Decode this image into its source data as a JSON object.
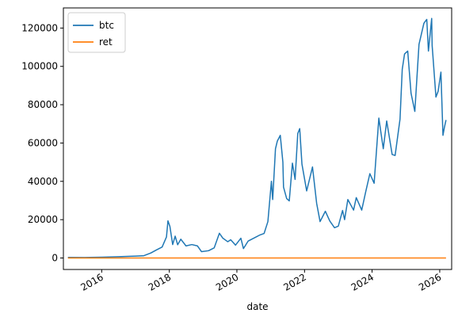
{
  "chart_data": {
    "type": "line",
    "xlabel": "date",
    "ylabel": "",
    "title": "",
    "x_tick_labels": [
      "2016",
      "2018",
      "2020",
      "2022",
      "2024",
      "2026"
    ],
    "x_ticks": [
      "2016-01-01",
      "2018-01-01",
      "2020-01-01",
      "2022-01-01",
      "2024-01-01",
      "2026-01-01"
    ],
    "y_tick_labels": [
      "0",
      "20000",
      "40000",
      "60000",
      "80000",
      "100000",
      "120000"
    ],
    "y_ticks": [
      0,
      20000,
      40000,
      60000,
      80000,
      100000,
      120000
    ],
    "xlim": [
      "2014-11-13",
      "2026-05-10"
    ],
    "ylim": [
      -6000,
      130500
    ],
    "grid": false,
    "legend_position": "top-left",
    "series": [
      {
        "name": "btc",
        "color": "#1f77b4",
        "points": [
          [
            "2015-01-01",
            320
          ],
          [
            "2015-07-01",
            260
          ],
          [
            "2016-01-01",
            430
          ],
          [
            "2016-07-01",
            670
          ],
          [
            "2017-01-01",
            1000
          ],
          [
            "2017-04-01",
            1200
          ],
          [
            "2017-06-15",
            2600
          ],
          [
            "2017-08-15",
            4200
          ],
          [
            "2017-10-15",
            5700
          ],
          [
            "2017-12-01",
            11000
          ],
          [
            "2017-12-17",
            19400
          ],
          [
            "2018-01-07",
            16500
          ],
          [
            "2018-02-06",
            7000
          ],
          [
            "2018-03-05",
            11400
          ],
          [
            "2018-04-01",
            6900
          ],
          [
            "2018-05-05",
            9800
          ],
          [
            "2018-06-30",
            6300
          ],
          [
            "2018-09-01",
            7000
          ],
          [
            "2018-11-01",
            6300
          ],
          [
            "2018-12-15",
            3300
          ],
          [
            "2019-03-01",
            3800
          ],
          [
            "2019-05-01",
            5300
          ],
          [
            "2019-06-26",
            12900
          ],
          [
            "2019-08-01",
            10400
          ],
          [
            "2019-09-24",
            8500
          ],
          [
            "2019-10-26",
            9500
          ],
          [
            "2019-12-17",
            6700
          ],
          [
            "2020-02-13",
            10300
          ],
          [
            "2020-03-12",
            4900
          ],
          [
            "2020-05-01",
            8800
          ],
          [
            "2020-07-27",
            11000
          ],
          [
            "2020-09-01",
            11900
          ],
          [
            "2020-10-21",
            12800
          ],
          [
            "2020-12-01",
            19000
          ],
          [
            "2021-01-08",
            40000
          ],
          [
            "2021-01-22",
            30500
          ],
          [
            "2021-02-21",
            57000
          ],
          [
            "2021-03-13",
            61000
          ],
          [
            "2021-04-14",
            64000
          ],
          [
            "2021-05-12",
            50000
          ],
          [
            "2021-05-19",
            37000
          ],
          [
            "2021-06-22",
            31000
          ],
          [
            "2021-07-20",
            29800
          ],
          [
            "2021-08-23",
            49500
          ],
          [
            "2021-09-21",
            41000
          ],
          [
            "2021-10-20",
            65000
          ],
          [
            "2021-11-10",
            67500
          ],
          [
            "2021-12-04",
            49000
          ],
          [
            "2022-01-24",
            35000
          ],
          [
            "2022-03-28",
            47500
          ],
          [
            "2022-05-12",
            28500
          ],
          [
            "2022-06-18",
            19000
          ],
          [
            "2022-08-14",
            24400
          ],
          [
            "2022-10-01",
            19300
          ],
          [
            "2022-11-21",
            15800
          ],
          [
            "2023-01-01",
            16600
          ],
          [
            "2023-02-16",
            24800
          ],
          [
            "2023-03-10",
            20000
          ],
          [
            "2023-04-14",
            30500
          ],
          [
            "2023-06-15",
            25000
          ],
          [
            "2023-07-14",
            31500
          ],
          [
            "2023-09-11",
            25000
          ],
          [
            "2023-10-24",
            34500
          ],
          [
            "2023-12-08",
            44000
          ],
          [
            "2024-01-23",
            39000
          ],
          [
            "2024-03-14",
            73000
          ],
          [
            "2024-05-01",
            57000
          ],
          [
            "2024-06-07",
            71500
          ],
          [
            "2024-08-05",
            54000
          ],
          [
            "2024-09-06",
            53500
          ],
          [
            "2024-10-29",
            72500
          ],
          [
            "2024-11-22",
            98500
          ],
          [
            "2024-12-17",
            106500
          ],
          [
            "2025-01-20",
            108000
          ],
          [
            "2025-02-25",
            86000
          ],
          [
            "2025-04-07",
            76500
          ],
          [
            "2025-05-22",
            111500
          ],
          [
            "2025-07-14",
            122500
          ],
          [
            "2025-08-14",
            124500
          ],
          [
            "2025-09-01",
            108000
          ],
          [
            "2025-10-06",
            125000
          ],
          [
            "2025-10-11",
            111000
          ],
          [
            "2025-11-21",
            84000
          ],
          [
            "2025-12-15",
            87000
          ],
          [
            "2026-01-14",
            97000
          ],
          [
            "2026-02-05",
            64000
          ],
          [
            "2026-02-20",
            68000
          ],
          [
            "2026-03-10",
            72000
          ]
        ]
      },
      {
        "name": "ret",
        "color": "#ff7f0e",
        "points": [
          [
            "2015-01-01",
            0
          ],
          [
            "2026-03-10",
            0
          ]
        ]
      }
    ]
  }
}
